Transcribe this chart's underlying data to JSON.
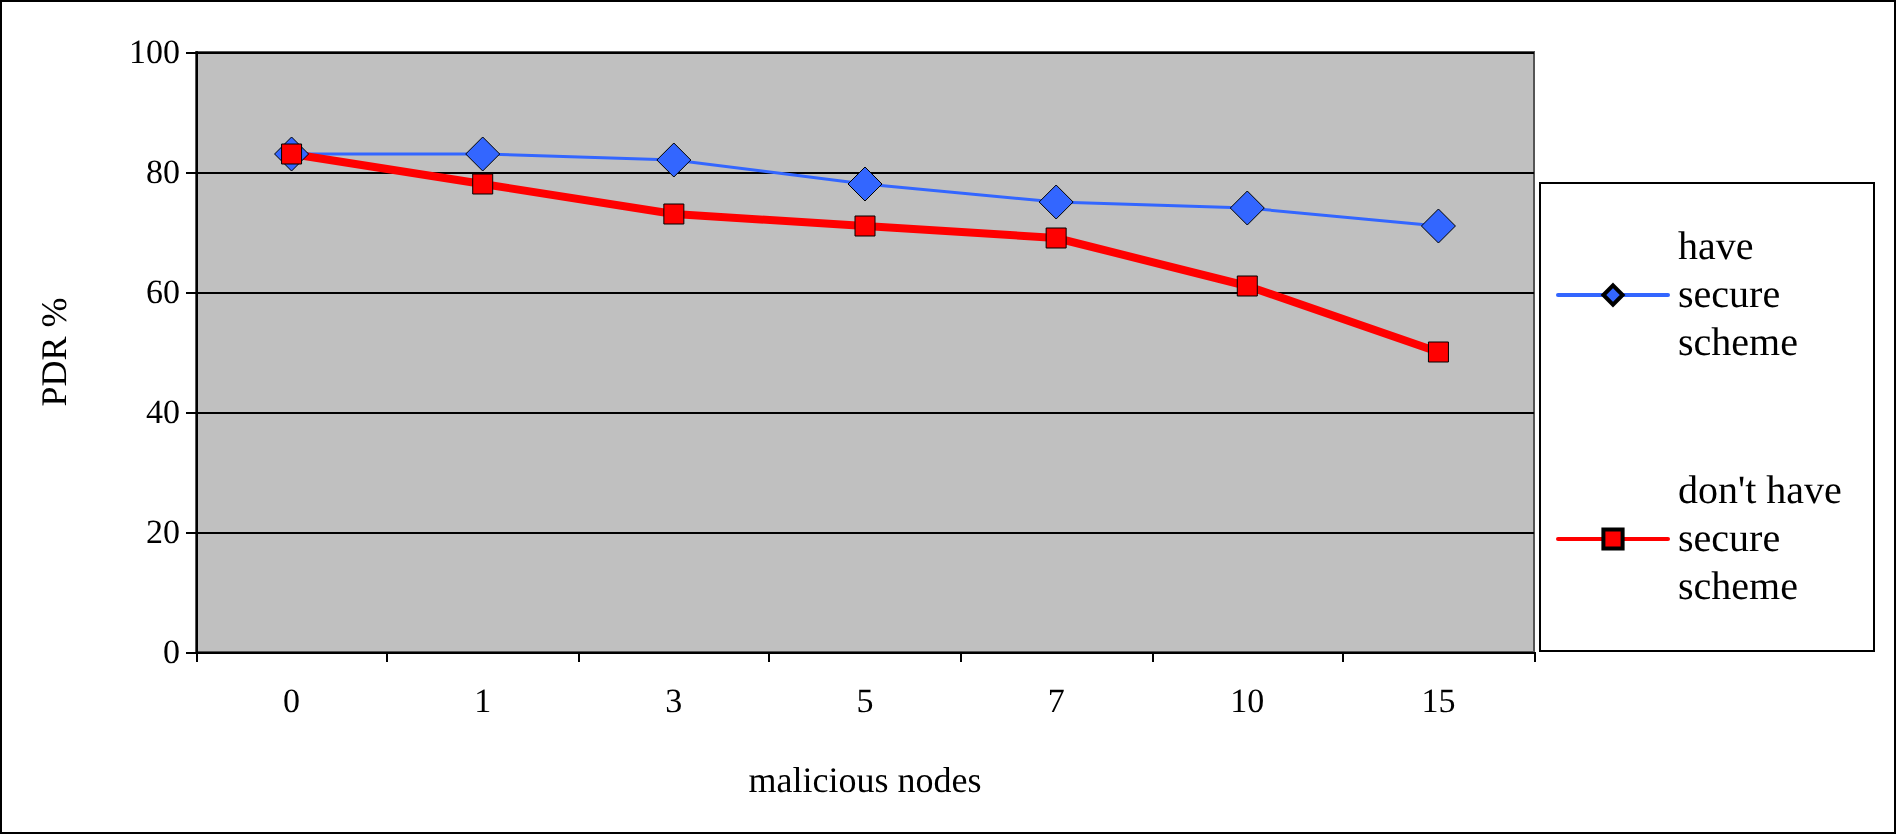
{
  "chart_data": {
    "type": "line",
    "xlabel": "malicious nodes",
    "ylabel": "PDR %",
    "categories": [
      "0",
      "1",
      "3",
      "5",
      "7",
      "10",
      "15"
    ],
    "series": [
      {
        "name": "have secure scheme",
        "color": "#3366ff",
        "marker": "diamond",
        "values": [
          83,
          83,
          82,
          78,
          75,
          74,
          71
        ]
      },
      {
        "name": "don't have secure scheme",
        "color": "#ff0000",
        "marker": "square",
        "values": [
          83,
          78,
          73,
          71,
          69,
          61,
          50
        ]
      }
    ],
    "ylim": [
      0,
      100
    ],
    "yticks": [
      0,
      20,
      40,
      60,
      80,
      100
    ],
    "grid": "y",
    "legend": "right"
  }
}
